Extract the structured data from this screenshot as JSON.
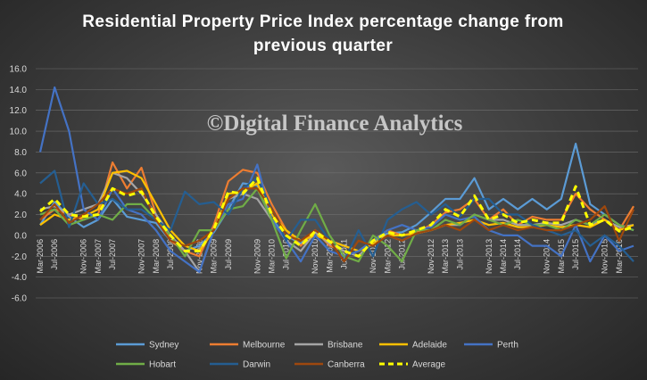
{
  "watermark": "©Digital Finance Analytics",
  "chart_data": {
    "type": "line",
    "title": "Residential Property Price Index percentage change from previous quarter",
    "title_lines": [
      "Residential Property Price Index percentage change from",
      "previous quarter"
    ],
    "xlabel": "",
    "ylabel": "",
    "ylim": [
      -6,
      16
    ],
    "yticks": [
      "16.0",
      "14.0",
      "12.0",
      "10.0",
      "8.0",
      "6.0",
      "4.0",
      "2.0",
      "0.0",
      "-2.0",
      "-4.0",
      "-6.0"
    ],
    "grid": true,
    "legend_position": "bottom",
    "categories": [
      "Mar-2006",
      "Jun-2006",
      "Sep-2006",
      "Dec-2006",
      "Mar-2007",
      "Jun-2007",
      "Sep-2007",
      "Dec-2007",
      "Mar-2008",
      "Jun-2008",
      "Sep-2008",
      "Dec-2008",
      "Mar-2009",
      "Jun-2009",
      "Sep-2009",
      "Dec-2009",
      "Mar-2010",
      "Jun-2010",
      "Sep-2010",
      "Dec-2010",
      "Mar-2011",
      "Jun-2011",
      "Sep-2011",
      "Dec-2011",
      "Mar-2012",
      "Jun-2012",
      "Sep-2012",
      "Dec-2012",
      "Mar-2013",
      "Jun-2013",
      "Sep-2013",
      "Dec-2013",
      "Mar-2014",
      "Jun-2014",
      "Sep-2014",
      "Dec-2014",
      "Mar-2015",
      "Jun-2015",
      "Sep-2015",
      "Dec-2015",
      "Mar-2016",
      "Jun-2016"
    ],
    "tick_labels": [
      {
        "i": 0,
        "label": "Mar-2006"
      },
      {
        "i": 1,
        "label": "Jul-2006"
      },
      {
        "i": 3,
        "label": "Nov-2006"
      },
      {
        "i": 4,
        "label": "Mar-2007"
      },
      {
        "i": 5,
        "label": "Jul-2007"
      },
      {
        "i": 7,
        "label": "Nov-2007"
      },
      {
        "i": 8,
        "label": "Mar-2008"
      },
      {
        "i": 9,
        "label": "Jul-2008"
      },
      {
        "i": 11,
        "label": "Nov-2008"
      },
      {
        "i": 12,
        "label": "Mar-2009"
      },
      {
        "i": 13,
        "label": "Jul-2009"
      },
      {
        "i": 15,
        "label": "Nov-2009"
      },
      {
        "i": 16,
        "label": "Mar-2010"
      },
      {
        "i": 17,
        "label": "Jul-2010"
      },
      {
        "i": 19,
        "label": "Nov-2010"
      },
      {
        "i": 20,
        "label": "Mar-2011"
      },
      {
        "i": 21,
        "label": "Jul-2011"
      },
      {
        "i": 23,
        "label": "Nov-2011"
      },
      {
        "i": 24,
        "label": "Mar-2012"
      },
      {
        "i": 25,
        "label": "Jul-2012"
      },
      {
        "i": 27,
        "label": "Nov-2012"
      },
      {
        "i": 28,
        "label": "Mar-2013"
      },
      {
        "i": 29,
        "label": "Jul-2013"
      },
      {
        "i": 31,
        "label": "Nov-2013"
      },
      {
        "i": 32,
        "label": "Mar-2014"
      },
      {
        "i": 33,
        "label": "Jul-2014"
      },
      {
        "i": 35,
        "label": "Nov-2014"
      },
      {
        "i": 36,
        "label": "Mar-2015"
      },
      {
        "i": 37,
        "label": "Jul-2015"
      },
      {
        "i": 39,
        "label": "Nov-2015"
      },
      {
        "i": 40,
        "label": "Mar-2016"
      }
    ],
    "series": [
      {
        "name": "Sydney",
        "color": "#5b9bd5",
        "dash": false,
        "values": [
          1.0,
          3.2,
          1.8,
          0.8,
          1.5,
          3.5,
          1.8,
          1.5,
          1.2,
          -0.5,
          -1.5,
          -1.0,
          0.3,
          2.5,
          5.0,
          4.8,
          1.5,
          0.0,
          -0.8,
          0.5,
          -0.5,
          -1.0,
          -1.5,
          -0.5,
          0.2,
          0.3,
          1.0,
          2.2,
          3.5,
          3.5,
          5.5,
          2.5,
          3.5,
          2.5,
          3.5,
          2.5,
          3.5,
          8.8,
          3.0,
          2.0,
          1.0,
          0.5
        ]
      },
      {
        "name": "Melbourne",
        "color": "#ed7d31",
        "dash": false,
        "values": [
          1.5,
          2.5,
          2.0,
          1.5,
          2.0,
          7.0,
          4.5,
          6.5,
          2.0,
          -0.5,
          -1.5,
          -2.0,
          1.0,
          5.2,
          6.3,
          6.0,
          3.0,
          0.5,
          -1.0,
          0.5,
          -1.0,
          -1.5,
          -2.0,
          -0.5,
          0.5,
          0.0,
          0.3,
          1.0,
          2.2,
          2.5,
          3.5,
          1.5,
          2.5,
          1.0,
          1.8,
          1.5,
          1.5,
          4.0,
          2.5,
          1.5,
          0.5,
          2.8
        ]
      },
      {
        "name": "Brisbane",
        "color": "#a5a5a5",
        "dash": false,
        "values": [
          2.5,
          2.8,
          2.0,
          2.5,
          3.0,
          6.0,
          5.5,
          4.0,
          2.0,
          0.0,
          -1.5,
          -3.5,
          0.5,
          3.5,
          4.0,
          3.5,
          1.5,
          -0.5,
          -1.5,
          0.3,
          -0.8,
          -1.5,
          -2.0,
          -0.5,
          0.0,
          -0.5,
          0.2,
          0.5,
          1.0,
          1.0,
          2.0,
          1.5,
          1.5,
          1.0,
          1.0,
          1.2,
          1.0,
          1.5,
          1.0,
          1.5,
          0.8,
          1.0
        ]
      },
      {
        "name": "Adelaide",
        "color": "#ffc000",
        "dash": false,
        "values": [
          1.0,
          2.0,
          1.5,
          1.8,
          2.5,
          6.0,
          6.2,
          5.5,
          3.0,
          0.5,
          -1.0,
          -1.5,
          0.5,
          4.0,
          4.2,
          5.0,
          2.0,
          0.5,
          -0.5,
          0.0,
          -0.5,
          -1.0,
          -1.5,
          -0.8,
          0.0,
          0.0,
          0.2,
          0.5,
          1.0,
          1.2,
          1.5,
          1.0,
          1.2,
          0.8,
          0.8,
          1.0,
          0.8,
          1.0,
          0.8,
          1.5,
          0.5,
          1.0
        ]
      },
      {
        "name": "Perth",
        "color": "#4472c4",
        "dash": false,
        "values": [
          8.0,
          14.2,
          10.0,
          2.5,
          1.5,
          4.5,
          2.5,
          2.0,
          0.5,
          -1.5,
          -2.5,
          -3.5,
          0.5,
          3.0,
          3.5,
          6.8,
          1.5,
          -0.5,
          -2.5,
          0.0,
          -1.5,
          -2.0,
          -1.5,
          -0.5,
          0.5,
          1.0,
          0.5,
          0.8,
          2.0,
          1.5,
          1.8,
          0.5,
          0.0,
          0.0,
          -1.0,
          -1.0,
          -2.0,
          1.0,
          -2.5,
          0.0,
          -1.5,
          -1.0
        ]
      },
      {
        "name": "Hobart",
        "color": "#70ad47",
        "dash": false,
        "values": [
          2.0,
          2.5,
          1.0,
          1.5,
          2.0,
          1.5,
          3.0,
          3.0,
          1.5,
          0.0,
          -2.0,
          0.5,
          0.5,
          2.5,
          2.8,
          4.5,
          1.5,
          -2.2,
          0.5,
          3.0,
          0.0,
          -2.0,
          -2.5,
          0.0,
          -1.0,
          -2.5,
          0.5,
          0.5,
          1.5,
          1.0,
          2.0,
          1.5,
          1.0,
          1.5,
          1.0,
          1.0,
          0.5,
          1.5,
          1.0,
          2.0,
          1.0,
          0.5
        ]
      },
      {
        "name": "Darwin",
        "color": "#255e91",
        "dash": false,
        "values": [
          5.0,
          6.2,
          0.8,
          5.0,
          3.0,
          3.5,
          2.5,
          2.5,
          1.5,
          0.5,
          4.2,
          3.0,
          3.2,
          2.0,
          4.5,
          5.5,
          2.5,
          -0.5,
          1.5,
          1.5,
          -0.5,
          -2.5,
          0.5,
          -2.0,
          1.5,
          2.5,
          3.2,
          2.0,
          3.0,
          1.8,
          3.5,
          3.5,
          2.0,
          2.0,
          1.0,
          0.5,
          0.0,
          0.5,
          -1.0,
          0.0,
          -1.0,
          -2.5
        ]
      },
      {
        "name": "Canberra",
        "color": "#9e480e",
        "dash": false,
        "values": [
          1.5,
          3.0,
          1.2,
          2.0,
          3.0,
          4.5,
          4.0,
          4.5,
          1.5,
          -0.5,
          -1.0,
          -0.5,
          0.5,
          3.5,
          4.5,
          4.5,
          2.5,
          0.0,
          -0.5,
          0.5,
          -0.5,
          -2.5,
          -0.5,
          -1.0,
          0.0,
          -0.5,
          0.2,
          0.5,
          1.0,
          0.5,
          1.5,
          0.5,
          1.0,
          0.5,
          0.8,
          0.5,
          0.5,
          1.0,
          1.5,
          2.8,
          -0.5,
          2.5
        ]
      },
      {
        "name": "Average",
        "color": "#ffff00",
        "dash": true,
        "values": [
          2.3,
          3.5,
          2.0,
          1.8,
          2.0,
          4.5,
          3.8,
          4.2,
          1.8,
          0.0,
          -1.5,
          -1.5,
          0.6,
          4.2,
          4.0,
          5.5,
          2.0,
          0.0,
          -1.0,
          0.4,
          -0.6,
          -1.5,
          -2.0,
          -0.5,
          0.3,
          0.0,
          0.5,
          1.0,
          2.5,
          1.8,
          3.8,
          1.5,
          2.0,
          1.2,
          1.5,
          1.2,
          1.2,
          4.7,
          1.0,
          1.5,
          0.4,
          0.8
        ]
      }
    ]
  }
}
